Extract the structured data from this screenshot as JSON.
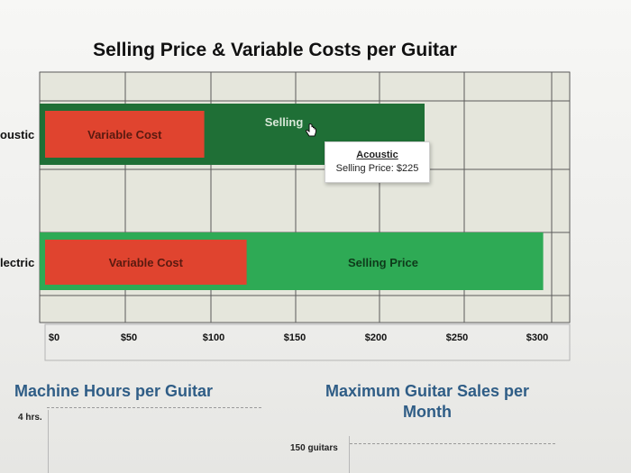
{
  "title": "Selling Price & Variable Costs per Guitar",
  "chart_data": {
    "type": "bar",
    "orientation": "horizontal",
    "categories": [
      "Acoustic",
      "Electric"
    ],
    "category_labels_visible": [
      "oustic",
      "lectric"
    ],
    "series": [
      {
        "name": "Selling Price",
        "values": [
          225,
          295
        ]
      },
      {
        "name": "Variable Cost",
        "values": [
          95,
          120
        ]
      }
    ],
    "bar_labels": {
      "variable_cost": "Variable Cost",
      "selling_price": "Selling Price",
      "selling_price_partial": "Selling"
    },
    "xlim": [
      0,
      305
    ],
    "x_ticks": [
      0,
      50,
      100,
      150,
      200,
      250,
      300
    ],
    "x_tick_labels": [
      "$0",
      "$50",
      "$100",
      "$150",
      "$200",
      "$250",
      "$300"
    ],
    "grid": true,
    "colors": {
      "acoustic_selling": "#1f6f36",
      "electric_selling": "#2eaa55",
      "variable_cost": "#e0442f",
      "plot_background": "#e5e6dc",
      "gridline": "#5a5a5a"
    }
  },
  "tooltip": {
    "title": "Acoustic",
    "text": "Selling Price: $225"
  },
  "machine_hours": {
    "title": "Machine Hours per Guitar",
    "label": "4 hrs."
  },
  "max_sales": {
    "title": "Maximum Guitar Sales per Month",
    "label": "150 guitars"
  }
}
